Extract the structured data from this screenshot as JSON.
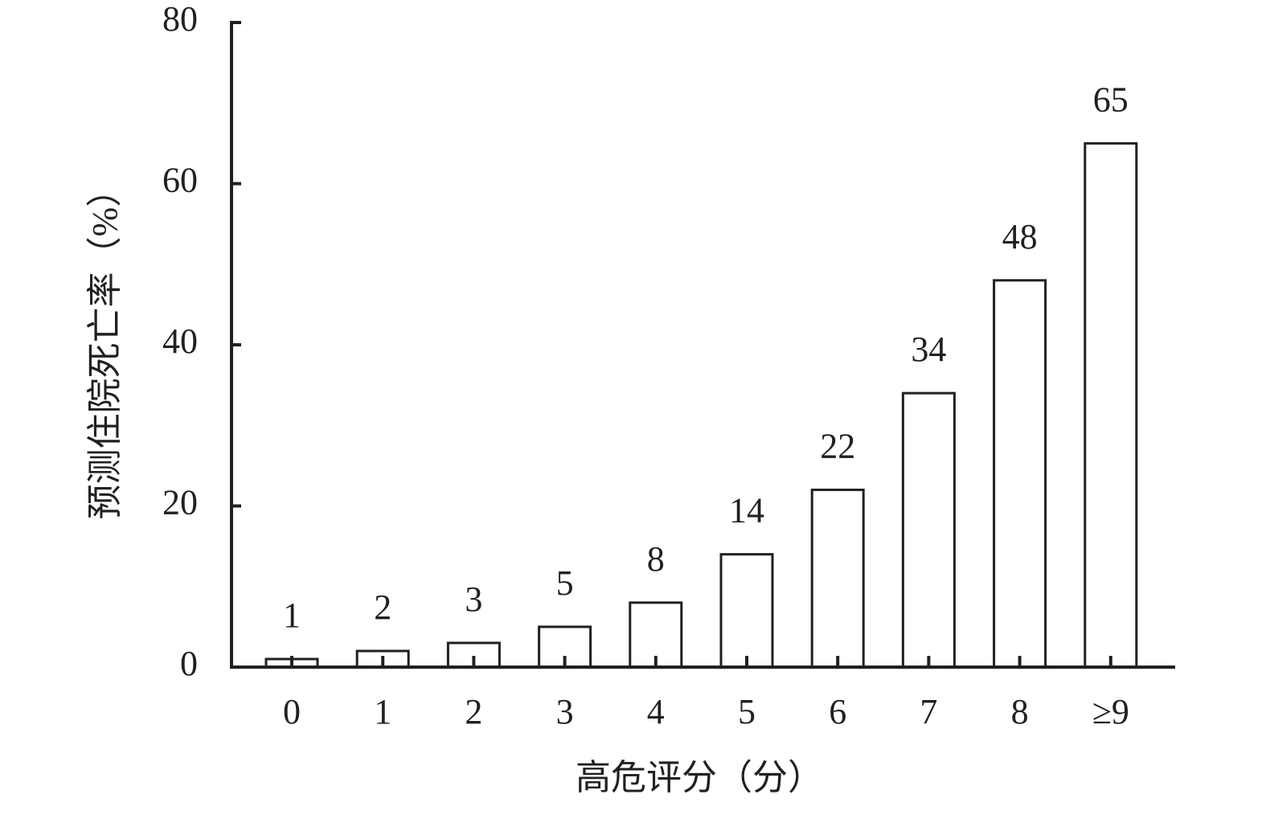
{
  "chart_data": {
    "type": "bar",
    "x_label": "高危评分（分）",
    "y_label": "预测住院死亡率（%）",
    "categories": [
      "0",
      "1",
      "2",
      "3",
      "4",
      "5",
      "6",
      "7",
      "8",
      "≥9"
    ],
    "values": [
      1,
      2,
      3,
      5,
      8,
      14,
      22,
      34,
      48,
      65
    ],
    "color": "#ffffff",
    "ylim": [
      0,
      80
    ],
    "yticks": [
      0,
      20,
      40,
      60,
      80
    ],
    "grid": false
  }
}
